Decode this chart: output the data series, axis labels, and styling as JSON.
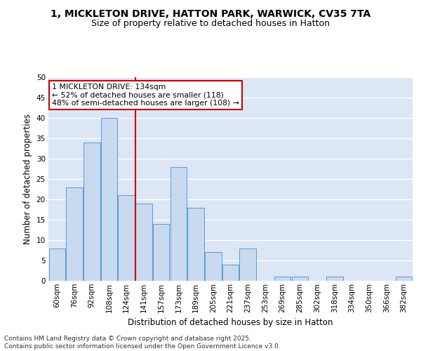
{
  "title_line1": "1, MICKLETON DRIVE, HATTON PARK, WARWICK, CV35 7TA",
  "title_line2": "Size of property relative to detached houses in Hatton",
  "xlabel": "Distribution of detached houses by size in Hatton",
  "ylabel": "Number of detached properties",
  "bin_labels": [
    "60sqm",
    "76sqm",
    "92sqm",
    "108sqm",
    "124sqm",
    "141sqm",
    "157sqm",
    "173sqm",
    "189sqm",
    "205sqm",
    "221sqm",
    "237sqm",
    "253sqm",
    "269sqm",
    "285sqm",
    "302sqm",
    "318sqm",
    "334sqm",
    "350sqm",
    "366sqm",
    "382sqm"
  ],
  "values": [
    8,
    23,
    34,
    40,
    21,
    19,
    14,
    28,
    18,
    7,
    4,
    8,
    0,
    1,
    1,
    0,
    1,
    0,
    0,
    0,
    1
  ],
  "bar_color": "#c9d9f0",
  "bar_edge_color": "#5b9bd5",
  "reference_line_x": 4.5,
  "annotation_text": "1 MICKLETON DRIVE: 134sqm\n← 52% of detached houses are smaller (118)\n48% of semi-detached houses are larger (108) →",
  "annotation_box_edge": "#cc0000",
  "reference_line_color": "#cc0000",
  "ylim": [
    0,
    50
  ],
  "yticks": [
    0,
    5,
    10,
    15,
    20,
    25,
    30,
    35,
    40,
    45,
    50
  ],
  "background_color": "#dce6f5",
  "grid_color": "#ffffff",
  "footer_text": "Contains HM Land Registry data © Crown copyright and database right 2025.\nContains public sector information licensed under the Open Government Licence v3.0.",
  "title_fontsize": 10,
  "subtitle_fontsize": 9,
  "axis_label_fontsize": 8.5,
  "tick_fontsize": 7.5,
  "annotation_fontsize": 7.8,
  "footer_fontsize": 6.5
}
